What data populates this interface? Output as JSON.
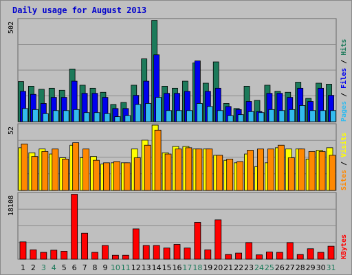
{
  "chart_data": [
    {
      "type": "bar",
      "title": "Daily usage for August 2013",
      "x": [
        "1",
        "2",
        "3",
        "4",
        "5",
        "6",
        "7",
        "8",
        "9",
        "10",
        "11",
        "12",
        "13",
        "14",
        "15",
        "16",
        "17",
        "18",
        "19",
        "20",
        "21",
        "22",
        "23",
        "24",
        "25",
        "26",
        "27",
        "28",
        "29",
        "30",
        "31"
      ],
      "weekend_days": [
        "3",
        "4",
        "10",
        "11",
        "17",
        "18",
        "24",
        "25",
        "31"
      ],
      "panels": [
        {
          "name": "hits-files-pages",
          "ymax_label": "502",
          "ymax": 502,
          "legend": [
            "Pages",
            "Files",
            "Hits"
          ],
          "series": [
            {
              "name": "Hits",
              "color": "#1c7a5a",
              "values": [
                198,
                175,
                160,
                165,
                155,
                260,
                180,
                165,
                145,
                85,
                95,
                180,
                310,
                500,
                175,
                165,
                200,
                290,
                190,
                295,
                90,
                65,
                175,
                105,
                180,
                150,
                145,
                195,
                115,
                190,
                185
              ]
            },
            {
              "name": "Files",
              "color": "#0000ee",
              "values": [
                150,
                135,
                90,
                120,
                120,
                200,
                140,
                140,
                120,
                65,
                65,
                130,
                200,
                330,
                140,
                140,
                150,
                300,
                150,
                165,
                75,
                60,
                100,
                50,
                140,
                140,
                120,
                165,
                100,
                165,
                130
              ]
            },
            {
              "name": "Pages",
              "color": "#33bbee",
              "values": [
                65,
                60,
                40,
                55,
                55,
                60,
                45,
                45,
                40,
                25,
                30,
                85,
                90,
                120,
                55,
                55,
                55,
                90,
                75,
                55,
                30,
                35,
                50,
                45,
                60,
                55,
                60,
                80,
                55,
                55,
                55
              ]
            }
          ]
        },
        {
          "name": "visits-sites",
          "ymax_label": "52",
          "ymax": 52,
          "legend": [
            "Sites",
            "Visits"
          ],
          "series": [
            {
              "name": "Visits",
              "color": "#ffff00",
              "values": [
                34,
                30,
                33,
                29,
                26,
                36,
                26,
                27,
                21,
                22,
                22,
                33,
                40,
                52,
                30,
                35,
                35,
                33,
                33,
                28,
                24,
                22,
                29,
                19,
                22,
                34,
                33,
                33,
                25,
                32,
                34
              ]
            },
            {
              "name": "Sites",
              "color": "#ff8800",
              "values": [
                37,
                27,
                31,
                33,
                25,
                38,
                33,
                24,
                22,
                23,
                22,
                26,
                36,
                48,
                29,
                33,
                34,
                33,
                33,
                28,
                25,
                23,
                32,
                33,
                33,
                36,
                26,
                33,
                31,
                31,
                28
              ]
            }
          ]
        },
        {
          "name": "kbytes",
          "ymax_label": "18108",
          "ymax": 18108,
          "legend": [
            "KBytes"
          ],
          "series": [
            {
              "name": "KBytes",
              "color": "#ff0000",
              "values": [
                4800,
                2600,
                1900,
                2500,
                2200,
                18000,
                7200,
                1900,
                3800,
                1100,
                1100,
                8400,
                3800,
                3800,
                3100,
                4100,
                3100,
                10200,
                2600,
                10900,
                1300,
                1700,
                4600,
                1200,
                2000,
                1900,
                4600,
                1300,
                2900,
                1900,
                3600
              ]
            }
          ]
        }
      ]
    }
  ],
  "colors": {
    "background": "#c0c0c0",
    "plot_background": "#bfbfbf",
    "grid": "#888888",
    "title": "#0000cc",
    "day_label": "#000000",
    "weekend_label": "#1c7a5a"
  }
}
